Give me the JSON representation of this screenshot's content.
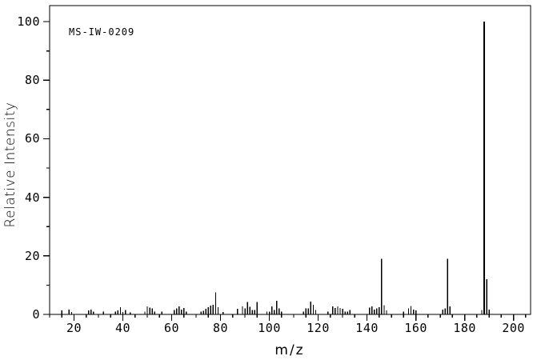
{
  "figure": {
    "annotation": "MS-IW-0209",
    "xlabel": "m/z",
    "ylabel": "Relative Intensity"
  },
  "chart_data": {
    "type": "bar",
    "subtype": "mass-spectrum-stick-plot",
    "title": "",
    "annotation": "MS-IW-0209",
    "xlabel": "m/z",
    "ylabel": "Relative Intensity",
    "xlim": [
      10,
      207
    ],
    "ylim": [
      0,
      105
    ],
    "x_major_ticks": [
      20,
      40,
      60,
      80,
      100,
      120,
      140,
      160,
      180,
      200
    ],
    "x_minor_tick_interval": 5,
    "x_minor_tick_range": [
      10,
      205
    ],
    "y_major_ticks": [
      0,
      20,
      40,
      60,
      80,
      100
    ],
    "y_minor_tick_interval": 10,
    "grid": false,
    "legend": false,
    "line_color": "#000000",
    "background_color": "#ffffff",
    "peaks_format": "[m/z, relative_intensity]",
    "peaks": [
      [
        15,
        1.3
      ],
      [
        18,
        1.6
      ],
      [
        19,
        0.8
      ],
      [
        26,
        1.4
      ],
      [
        27,
        1.7
      ],
      [
        28,
        1.0
      ],
      [
        32,
        0.9
      ],
      [
        37,
        1.0
      ],
      [
        38,
        1.4
      ],
      [
        39,
        2.5
      ],
      [
        40,
        0.8
      ],
      [
        41,
        1.5
      ],
      [
        43,
        0.7
      ],
      [
        49,
        0.9
      ],
      [
        50,
        2.8
      ],
      [
        51,
        2.3
      ],
      [
        52,
        2.1
      ],
      [
        53,
        1.0
      ],
      [
        56,
        0.9
      ],
      [
        61,
        1.5
      ],
      [
        62,
        2.0
      ],
      [
        63,
        2.8
      ],
      [
        64,
        1.6
      ],
      [
        65,
        2.2
      ],
      [
        66,
        0.9
      ],
      [
        72,
        1.0
      ],
      [
        73,
        1.2
      ],
      [
        74,
        1.9
      ],
      [
        75,
        2.4
      ],
      [
        76,
        3.0
      ],
      [
        77,
        3.3
      ],
      [
        78,
        7.5
      ],
      [
        79,
        2.5
      ],
      [
        81,
        0.8
      ],
      [
        87,
        1.9
      ],
      [
        89,
        2.8
      ],
      [
        90,
        2.1
      ],
      [
        91,
        4.3
      ],
      [
        92,
        2.6
      ],
      [
        93,
        1.5
      ],
      [
        94,
        1.5
      ],
      [
        95,
        4.3
      ],
      [
        99,
        0.9
      ],
      [
        100,
        1.0
      ],
      [
        101,
        2.7
      ],
      [
        102,
        1.5
      ],
      [
        103,
        4.7
      ],
      [
        104,
        2.0
      ],
      [
        105,
        1.0
      ],
      [
        114,
        1.0
      ],
      [
        115,
        2.0
      ],
      [
        116,
        2.0
      ],
      [
        117,
        4.4
      ],
      [
        118,
        3.3
      ],
      [
        119,
        1.5
      ],
      [
        124,
        1.0
      ],
      [
        126,
        2.7
      ],
      [
        127,
        2.2
      ],
      [
        128,
        2.7
      ],
      [
        129,
        2.2
      ],
      [
        130,
        1.9
      ],
      [
        131,
        1.0
      ],
      [
        132,
        1.0
      ],
      [
        133,
        1.5
      ],
      [
        141,
        2.3
      ],
      [
        142,
        2.8
      ],
      [
        143,
        1.6
      ],
      [
        144,
        2.0
      ],
      [
        145,
        2.4
      ],
      [
        146,
        19
      ],
      [
        147,
        3.2
      ],
      [
        148,
        1.3
      ],
      [
        155,
        1.0
      ],
      [
        157,
        2.0
      ],
      [
        158,
        2.9
      ],
      [
        159,
        1.7
      ],
      [
        160,
        1.3
      ],
      [
        171,
        1.7
      ],
      [
        172,
        2.1
      ],
      [
        173,
        19
      ],
      [
        174,
        2.8
      ],
      [
        187,
        1.5
      ],
      [
        188,
        100
      ],
      [
        189,
        12
      ],
      [
        190,
        1.6
      ]
    ]
  }
}
